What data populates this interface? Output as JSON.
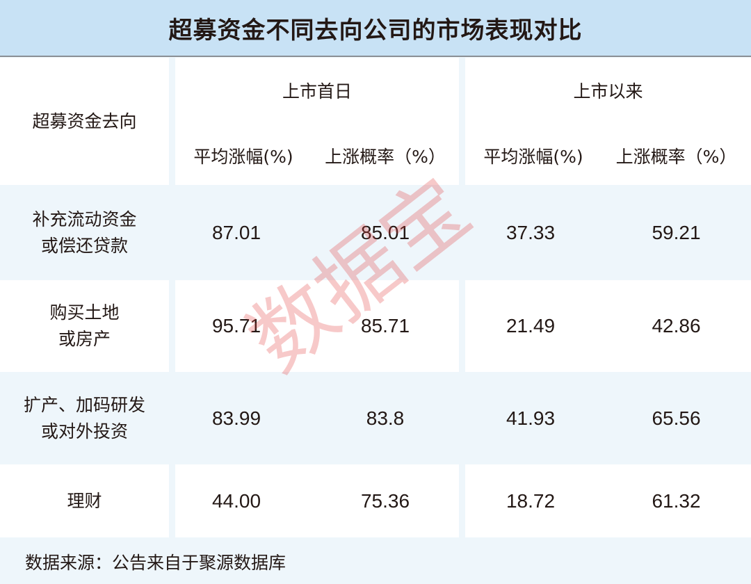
{
  "title": "超募资金不同去向公司的市场表现对比",
  "chart_data": {
    "type": "table",
    "row_header": "超募资金去向",
    "column_groups": [
      {
        "label": "上市首日",
        "columns": [
          "平均涨幅(%)",
          "上涨概率（%）"
        ]
      },
      {
        "label": "上市以来",
        "columns": [
          "平均涨幅(%)",
          "上涨概率（%）"
        ]
      }
    ],
    "rows": [
      {
        "label_lines": [
          "补充流动资金",
          "或偿还贷款"
        ],
        "values": [
          "87.01",
          "85.01",
          "37.33",
          "59.21"
        ]
      },
      {
        "label_lines": [
          "购买土地",
          "或房产"
        ],
        "values": [
          "95.71",
          "85.71",
          "21.49",
          "42.86"
        ]
      },
      {
        "label_lines": [
          "扩产、加码研发",
          "或对外投资"
        ],
        "values": [
          "83.99",
          "83.8",
          "41.93",
          "65.56"
        ]
      },
      {
        "label_lines": [
          "理财"
        ],
        "values": [
          "44.00",
          "75.36",
          "18.72",
          "61.32"
        ]
      }
    ]
  },
  "footer": "数据来源：公告来自于聚源数据库",
  "watermark": "数据宝",
  "colors": {
    "title_bg": "#c8e2f5",
    "band_bg": "#eef6fb",
    "cell_bg": "#ffffff",
    "watermark": "#e13c3c"
  }
}
